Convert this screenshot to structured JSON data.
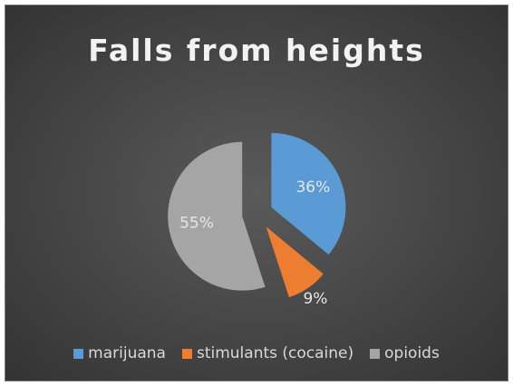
{
  "chart_data": {
    "type": "pie",
    "title": "Falls from heights",
    "categories": [
      "marijuana",
      "stimulants (cocaine)",
      "opioids"
    ],
    "values": [
      36,
      9,
      55
    ],
    "labels": [
      "36%",
      "9%",
      "55%"
    ],
    "colors": [
      "#5b9bd5",
      "#ed7d31",
      "#a5a5a5"
    ],
    "exploded": true,
    "legend": "bottom"
  }
}
